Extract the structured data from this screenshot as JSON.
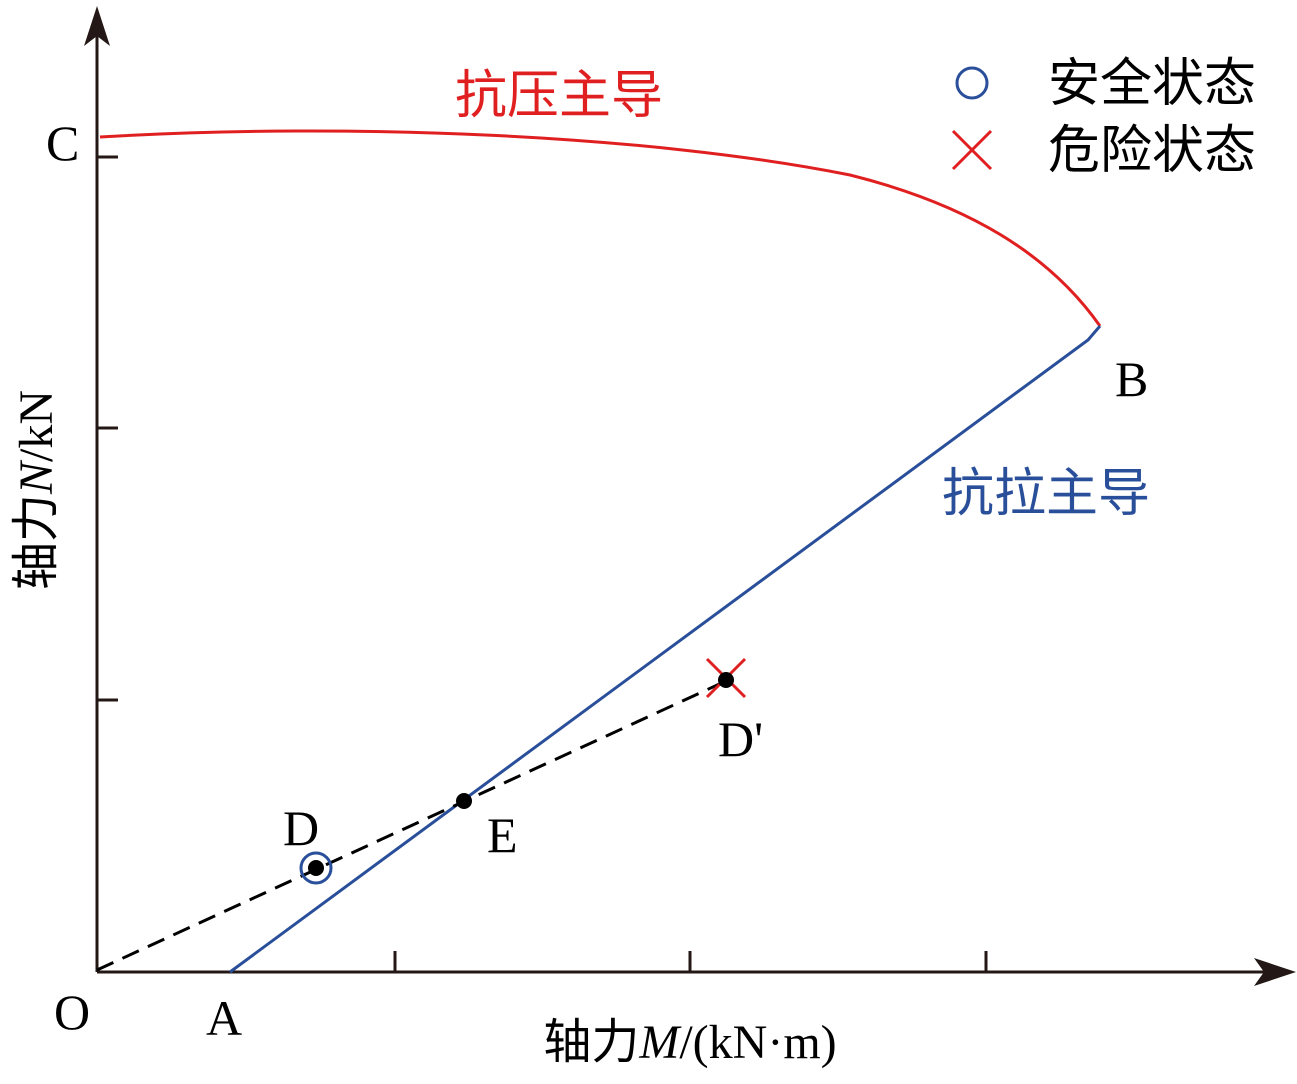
{
  "labels": {
    "point_c": "C",
    "point_o": "O",
    "point_a": "A",
    "point_b": "B",
    "point_d": "D",
    "point_e": "E",
    "point_d_prime": "D'"
  },
  "axes": {
    "y_label_prefix": "轴力",
    "y_label_var": "N",
    "y_label_unit": "/kN",
    "x_label_prefix": "轴力",
    "x_label_var": "M",
    "x_label_unit": "/(kN·m)"
  },
  "regions": {
    "compression": "抗压主导",
    "tension": "抗拉主导"
  },
  "legend": {
    "safe": "安全状态",
    "danger": "危险状态"
  },
  "colors": {
    "compression_curve": "#e02020",
    "tension_line": "#2a4f9a",
    "axis": "#231815",
    "dashed": "#000000",
    "safe_marker": "#2a4f9a",
    "danger_marker": "#e02020"
  }
}
